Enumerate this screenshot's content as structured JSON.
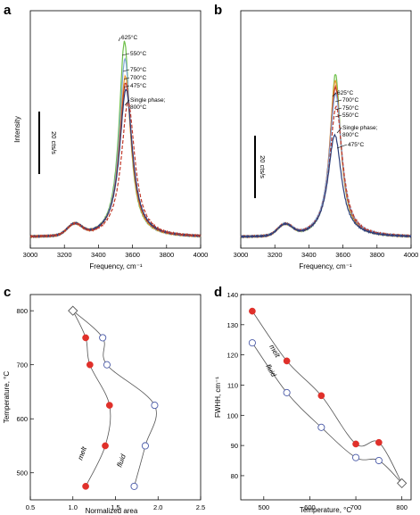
{
  "chart_data": [
    {
      "panel": "a",
      "type": "line",
      "xlabel": "Frequency, cm⁻¹",
      "ylabel": "Intensity",
      "xlim": [
        3000,
        4000
      ],
      "x_ticks": [
        3000,
        3200,
        3400,
        3600,
        3800,
        4000
      ],
      "scale_bar_label": "20 cts/s",
      "series": [
        {
          "label": "625°C",
          "color": "#6fc04b",
          "dash": "solid",
          "peak_x": 3553,
          "peak_height": 0.9
        },
        {
          "label": "550°C",
          "color": "#7fa7d8",
          "dash": "solid",
          "peak_x": 3556,
          "peak_height": 0.82
        },
        {
          "label": "750°C",
          "color": "#e59a2b",
          "dash": "solid",
          "peak_x": 3558,
          "peak_height": 0.74
        },
        {
          "label": "700°C",
          "color": "#c0392b",
          "dash": "solid",
          "peak_x": 3560,
          "peak_height": 0.71
        },
        {
          "label": "475°C",
          "color": "#2c3e7a",
          "dash": "solid",
          "peak_x": 3562,
          "peak_height": 0.68
        },
        {
          "label": "Single phase; 800°C",
          "color": "#c0392b",
          "dash": "dashed",
          "peak_x": 3574,
          "peak_height": 0.62
        }
      ]
    },
    {
      "panel": "b",
      "type": "line",
      "xlabel": "Frequency, cm⁻¹",
      "xlim": [
        3000,
        4000
      ],
      "x_ticks": [
        3000,
        3200,
        3400,
        3600,
        3800,
        4000
      ],
      "scale_bar_label": "20 cts/s",
      "series": [
        {
          "label": "625°C",
          "color": "#6fc04b",
          "dash": "solid",
          "peak_x": 3556,
          "peak_height": 0.75
        },
        {
          "label": "700°C",
          "color": "#e59a2b",
          "dash": "solid",
          "peak_x": 3555,
          "peak_height": 0.72
        },
        {
          "label": "750°C",
          "color": "#c0392b",
          "dash": "solid",
          "peak_x": 3556,
          "peak_height": 0.69
        },
        {
          "label": "550°C",
          "color": "#7fa7d8",
          "dash": "solid",
          "peak_x": 3557,
          "peak_height": 0.66
        },
        {
          "label": "Single phase; 800°C",
          "color": "#c0392b",
          "dash": "dashed",
          "peak_x": 3560,
          "peak_height": 0.6
        },
        {
          "label": "475°C",
          "color": "#2c3e7a",
          "dash": "solid",
          "peak_x": 3552,
          "peak_height": 0.47
        }
      ]
    },
    {
      "panel": "c",
      "type": "scatter",
      "xlabel": "Normalized area",
      "ylabel": "Temperature, °C",
      "xlim": [
        0.5,
        2.5
      ],
      "ylim": [
        450,
        830
      ],
      "x_ticks": [
        "0.5",
        "1.0",
        "1.5",
        "2.0",
        "2.5"
      ],
      "y_ticks": [
        "500",
        "600",
        "700",
        "800"
      ],
      "series": [
        {
          "name": "melt",
          "marker": "filled-circle",
          "color": "#e0302a",
          "points": [
            [
              1.15,
              750
            ],
            [
              1.2,
              700
            ],
            [
              1.43,
              625
            ],
            [
              1.38,
              550
            ],
            [
              1.15,
              475
            ]
          ]
        },
        {
          "name": "fluid",
          "marker": "open-circle",
          "color": "#4a5aa8",
          "points": [
            [
              1.35,
              750
            ],
            [
              1.4,
              700
            ],
            [
              1.96,
              625
            ],
            [
              1.85,
              550
            ],
            [
              1.72,
              475
            ]
          ]
        }
      ],
      "critical_point": {
        "x": 1.0,
        "y": 800,
        "marker": "open-diamond"
      }
    },
    {
      "panel": "d",
      "type": "scatter",
      "xlabel": "Temperature, °C",
      "ylabel": "FWHH, cm⁻¹",
      "xlim": [
        450,
        820
      ],
      "ylim": [
        72,
        140
      ],
      "x_ticks": [
        "500",
        "600",
        "700",
        "800"
      ],
      "y_ticks": [
        "80",
        "90",
        "100",
        "110",
        "120",
        "130",
        "140"
      ],
      "series": [
        {
          "name": "melt",
          "marker": "filled-circle",
          "color": "#e0302a",
          "points": [
            [
              475,
              134.5
            ],
            [
              550,
              118
            ],
            [
              625,
              106.5
            ],
            [
              700,
              90.5
            ],
            [
              750,
              91
            ]
          ]
        },
        {
          "name": "fluid",
          "marker": "open-circle",
          "color": "#4a5aa8",
          "points": [
            [
              475,
              124
            ],
            [
              550,
              107.5
            ],
            [
              625,
              96
            ],
            [
              700,
              86
            ],
            [
              750,
              85
            ]
          ]
        }
      ],
      "critical_point": {
        "x": 800,
        "y": 77.5,
        "marker": "open-diamond"
      }
    }
  ],
  "labels": {
    "a": "a",
    "b": "b",
    "c": "c",
    "d": "d",
    "freq_xlabel": "Frequency, cm⁻¹",
    "intensity": "Intensity",
    "scalebar": "20 cts/s",
    "melt": "melt",
    "fluid": "fluid",
    "c_xlabel": "Normalized area",
    "c_ylabel": "Temperature, °C",
    "d_xlabel": "Temperature, °C",
    "d_ylabel": "FWHH, cm⁻¹"
  }
}
